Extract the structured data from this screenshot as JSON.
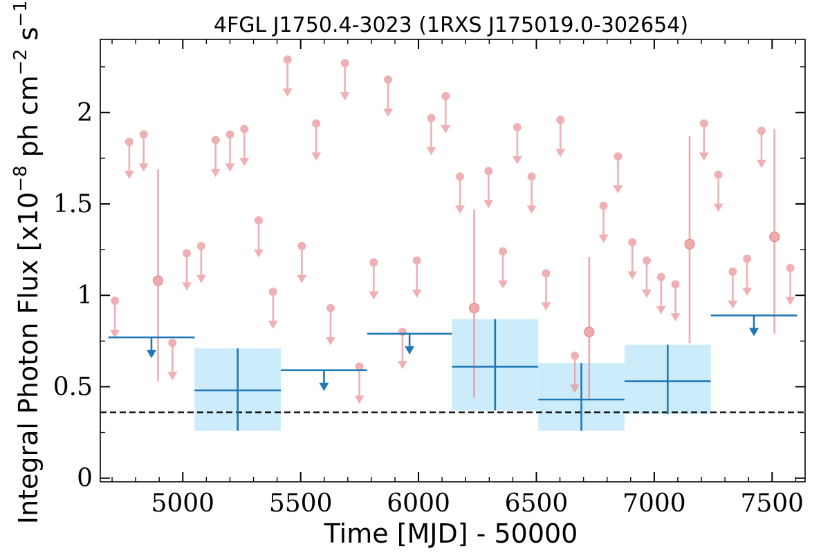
{
  "chart_data": {
    "type": "scatter",
    "title": "4FGL J1750.4-3023 (1RXS J175019.0-302654)",
    "xlabel": "Time [MJD] - 50000",
    "ylabel_parts": {
      "prefix": "Integral Photon Flux [x10",
      "exp1": "−8",
      "mid1": " ph cm",
      "exp2": "−2",
      "mid2": " s",
      "exp3": "−1",
      "suffix": "]"
    },
    "xlim": [
      4650,
      7640
    ],
    "ylim": [
      -0.02,
      2.4
    ],
    "x_ticks": [
      5000,
      5500,
      6000,
      6500,
      7000,
      7500
    ],
    "x_tick_labels": [
      "5000",
      "5500",
      "6000",
      "6500",
      "7000",
      "7500"
    ],
    "y_ticks": [
      0,
      0.5,
      1,
      1.5,
      2
    ],
    "y_tick_labels": [
      "0",
      "0.5",
      "1",
      "1.5",
      "2"
    ],
    "reference_line": {
      "y": 0.36,
      "style": "dashed",
      "color": "#000000"
    },
    "colors": {
      "short_bins": "#e8878b",
      "long_bins": "#1f77b4",
      "band": "#cdecfb"
    },
    "long_bins": {
      "detections": [
        {
          "x0": 5050,
          "x1": 5416,
          "y": 0.48,
          "ylo": 0.26,
          "yhi": 0.71
        },
        {
          "x0": 6142,
          "x1": 6508,
          "y": 0.61,
          "ylo": 0.37,
          "yhi": 0.87
        },
        {
          "x0": 6508,
          "x1": 6874,
          "y": 0.43,
          "ylo": 0.26,
          "yhi": 0.63
        },
        {
          "x0": 6874,
          "x1": 7240,
          "y": 0.53,
          "ylo": 0.35,
          "yhi": 0.73
        }
      ],
      "upper_limits": [
        {
          "x0": 4684,
          "x1": 5050,
          "y": 0.77
        },
        {
          "x0": 5416,
          "x1": 5782,
          "y": 0.59
        },
        {
          "x0": 5782,
          "x1": 6142,
          "y": 0.79
        },
        {
          "x0": 7240,
          "x1": 7606,
          "y": 0.89
        }
      ]
    },
    "short_bins": {
      "detections": [
        {
          "x": 4895,
          "y": 1.08,
          "ylo": 0.53,
          "yhi": 1.69
        },
        {
          "x": 6236,
          "y": 0.93,
          "ylo": 0.44,
          "yhi": 1.47
        },
        {
          "x": 6724,
          "y": 0.8,
          "ylo": 0.43,
          "yhi": 1.21
        },
        {
          "x": 7150,
          "y": 1.28,
          "ylo": 0.74,
          "yhi": 1.87
        },
        {
          "x": 7510,
          "y": 1.32,
          "ylo": 0.79,
          "yhi": 1.91
        }
      ],
      "upper_limits": [
        {
          "x": 4712,
          "y": 0.97
        },
        {
          "x": 4773,
          "y": 1.84
        },
        {
          "x": 4834,
          "y": 1.88
        },
        {
          "x": 4956,
          "y": 0.74
        },
        {
          "x": 5017,
          "y": 1.23
        },
        {
          "x": 5078,
          "y": 1.27
        },
        {
          "x": 5139,
          "y": 1.85
        },
        {
          "x": 5200,
          "y": 1.88
        },
        {
          "x": 5261,
          "y": 1.91
        },
        {
          "x": 5322,
          "y": 1.41
        },
        {
          "x": 5383,
          "y": 1.02
        },
        {
          "x": 5444,
          "y": 2.29
        },
        {
          "x": 5505,
          "y": 1.27
        },
        {
          "x": 5566,
          "y": 1.94
        },
        {
          "x": 5627,
          "y": 0.93
        },
        {
          "x": 5688,
          "y": 2.27
        },
        {
          "x": 5749,
          "y": 0.61
        },
        {
          "x": 5810,
          "y": 1.18
        },
        {
          "x": 5871,
          "y": 2.18
        },
        {
          "x": 5932,
          "y": 0.8
        },
        {
          "x": 5993,
          "y": 1.19
        },
        {
          "x": 6054,
          "y": 1.97
        },
        {
          "x": 6115,
          "y": 2.09
        },
        {
          "x": 6176,
          "y": 1.65
        },
        {
          "x": 6297,
          "y": 1.68
        },
        {
          "x": 6358,
          "y": 1.24
        },
        {
          "x": 6419,
          "y": 1.92
        },
        {
          "x": 6480,
          "y": 1.65
        },
        {
          "x": 6541,
          "y": 1.12
        },
        {
          "x": 6602,
          "y": 1.96
        },
        {
          "x": 6663,
          "y": 0.67
        },
        {
          "x": 6785,
          "y": 1.49
        },
        {
          "x": 6846,
          "y": 1.76
        },
        {
          "x": 6907,
          "y": 1.29
        },
        {
          "x": 6968,
          "y": 1.19
        },
        {
          "x": 7029,
          "y": 1.1
        },
        {
          "x": 7090,
          "y": 1.06
        },
        {
          "x": 7211,
          "y": 1.94
        },
        {
          "x": 7272,
          "y": 1.66
        },
        {
          "x": 7333,
          "y": 1.13
        },
        {
          "x": 7394,
          "y": 1.2
        },
        {
          "x": 7455,
          "y": 1.9
        },
        {
          "x": 7577,
          "y": 1.15
        }
      ]
    }
  }
}
